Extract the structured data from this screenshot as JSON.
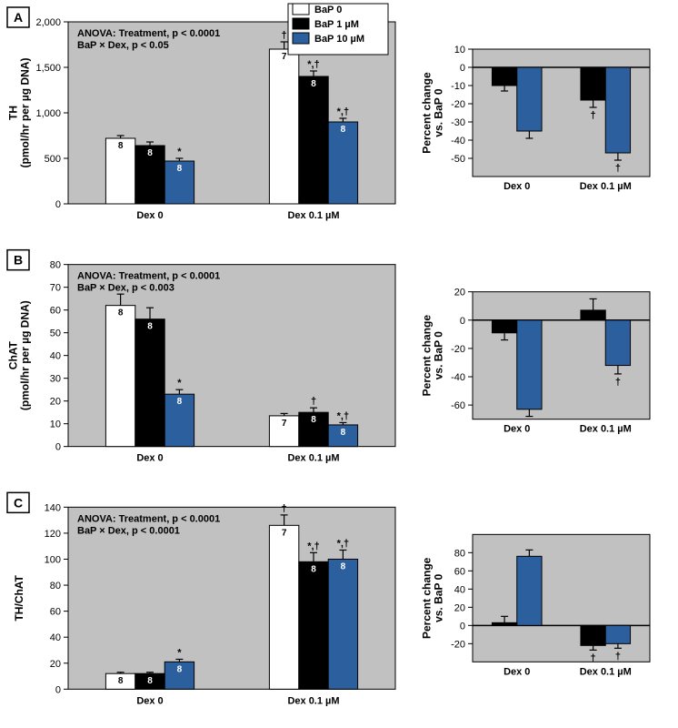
{
  "colors": {
    "background": "#ffffff",
    "plot": "#c1c1c1",
    "axis": "#000000",
    "bar_white": "#ffffff",
    "bar_black": "#000000",
    "bar_blue": "#2b5f9e"
  },
  "legend": {
    "items": [
      {
        "label": "BaP 0",
        "color": "bar_white"
      },
      {
        "label": "BaP 1 µM",
        "color": "bar_black"
      },
      {
        "label": "BaP 10 µM",
        "color": "bar_blue"
      }
    ]
  },
  "panels": [
    {
      "id": "A",
      "ylabel": "TH\n(pmol/hr per µg DNA)",
      "anova": [
        "ANOVA: Treatment, p < 0.0001",
        "BaP × Dex, p < 0.05"
      ],
      "main": {
        "ylim": [
          0,
          2000
        ],
        "ytick_step": 500,
        "categories": [
          "Dex 0",
          "Dex 0.1 µM"
        ],
        "bars": [
          {
            "vals": [
              720,
              640,
              470
            ],
            "err": [
              30,
              40,
              30
            ],
            "n": [
              "8",
              "8",
              "8"
            ],
            "sig": [
              "",
              "",
              "*"
            ]
          },
          {
            "vals": [
              1700,
              1400,
              900
            ],
            "err": [
              80,
              60,
              40
            ],
            "n": [
              "7",
              "8",
              "8"
            ],
            "sig": [
              "†",
              "*,†",
              "*,†"
            ]
          }
        ]
      },
      "side": {
        "ylabel": "Percent change\nvs. BaP 0",
        "ylim": [
          -60,
          10
        ],
        "yticks": [
          -50,
          -40,
          -30,
          -20,
          -10,
          0,
          10
        ],
        "categories": [
          "Dex 0",
          "Dex 0.1 µM"
        ],
        "bars": [
          {
            "vals": [
              -10,
              -35
            ],
            "err": [
              3,
              4
            ],
            "sig": [
              "",
              ""
            ]
          },
          {
            "vals": [
              -18,
              -47
            ],
            "err": [
              4,
              4
            ],
            "sig": [
              "†",
              "†"
            ]
          }
        ]
      }
    },
    {
      "id": "B",
      "ylabel": "ChAT\n(pmol/hr per µg DNA)",
      "anova": [
        "ANOVA: Treatment, p < 0.0001",
        "BaP × Dex, p < 0.003"
      ],
      "main": {
        "ylim": [
          0,
          80
        ],
        "ytick_step": 10,
        "categories": [
          "Dex 0",
          "Dex 0.1 µM"
        ],
        "bars": [
          {
            "vals": [
              62,
              56,
              23
            ],
            "err": [
              5,
              5,
              2
            ],
            "n": [
              "8",
              "8",
              "8"
            ],
            "sig": [
              "",
              "",
              "*"
            ]
          },
          {
            "vals": [
              13.5,
              15,
              9.5
            ],
            "err": [
              1,
              2,
              1
            ],
            "n": [
              "7",
              "8",
              "8"
            ],
            "sig": [
              "",
              "†",
              "*,†"
            ]
          }
        ]
      },
      "side": {
        "ylabel": "Percent change\nvs. BaP 0",
        "ylim": [
          -70,
          20
        ],
        "yticks": [
          -60,
          -40,
          -20,
          0,
          20
        ],
        "categories": [
          "Dex 0",
          "Dex 0.1 µM"
        ],
        "bars": [
          {
            "vals": [
              -9,
              -63
            ],
            "err": [
              5,
              5
            ],
            "sig": [
              "",
              ""
            ]
          },
          {
            "vals": [
              7,
              -32
            ],
            "err": [
              8,
              6
            ],
            "sig": [
              "",
              "†"
            ]
          }
        ]
      }
    },
    {
      "id": "C",
      "ylabel": "TH/ChAT",
      "anova": [
        "ANOVA: Treatment, p < 0.0001",
        "BaP × Dex, p < 0.0001"
      ],
      "main": {
        "ylim": [
          0,
          140
        ],
        "ytick_step": 20,
        "categories": [
          "Dex 0",
          "Dex 0.1 µM"
        ],
        "bars": [
          {
            "vals": [
              12,
              12,
              21
            ],
            "err": [
              1,
              1,
              2
            ],
            "n": [
              "8",
              "8",
              "8"
            ],
            "sig": [
              "",
              "",
              "*"
            ]
          },
          {
            "vals": [
              126,
              98,
              100
            ],
            "err": [
              8,
              7,
              7
            ],
            "n": [
              "7",
              "8",
              "8"
            ],
            "sig": [
              "†",
              "*,†",
              "*,†"
            ]
          }
        ]
      },
      "side": {
        "ylabel": "Percent change\nvs. BaP 0",
        "ylim": [
          -40,
          100
        ],
        "yticks": [
          -20,
          0,
          20,
          40,
          60,
          80
        ],
        "categories": [
          "Dex 0",
          "Dex 0.1 µM"
        ],
        "bars": [
          {
            "vals": [
              3,
              76
            ],
            "err": [
              7,
              7
            ],
            "sig": [
              "",
              ""
            ]
          },
          {
            "vals": [
              -22,
              -20
            ],
            "err": [
              5,
              5
            ],
            "sig": [
              "†",
              "†"
            ]
          }
        ]
      }
    }
  ]
}
